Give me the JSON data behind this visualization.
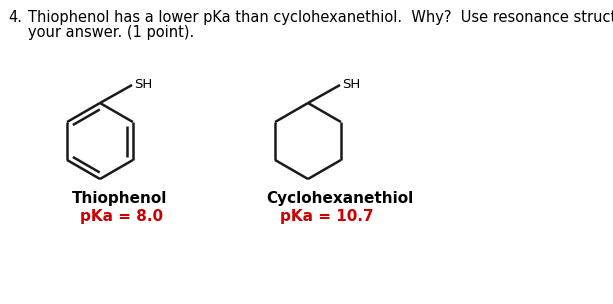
{
  "title_number": "4.",
  "question_line1": "Thiophenol has a lower pKa than cyclohexanethiol.  Why?  Use resonance structures to justify",
  "question_line2": "your answer. (1 point).",
  "thiophenol_label": "Thiophenol",
  "thiophenol_pka": "pKa = 8.0",
  "cyclohexane_label": "Cyclohexanethiol",
  "cyclohexane_pka": "pKa = 10.7",
  "sh_label": "SH",
  "text_color": "#000000",
  "red_color": "#cc0000",
  "bg_color": "#ffffff",
  "line_color": "#1a1a1a",
  "linewidth": 1.8,
  "font_size_text": 10.5,
  "font_size_label": 11,
  "font_size_pka": 11,
  "font_size_sh": 9.5
}
